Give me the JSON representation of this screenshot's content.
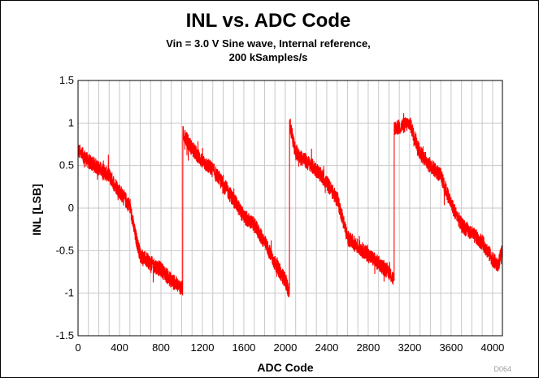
{
  "chart_data": {
    "type": "line",
    "title": "INL vs. ADC Code",
    "subtitle_lines": [
      "Vin = 3.0 V Sine wave, Internal reference,",
      "200 kSamples/s"
    ],
    "xlabel": "ADC Code",
    "ylabel": "INL [LSB]",
    "xlim": [
      0,
      4095
    ],
    "ylim": [
      -1.5,
      1.5
    ],
    "x_ticks": [
      0,
      400,
      800,
      1200,
      1600,
      2000,
      2400,
      2800,
      3200,
      3600,
      4000
    ],
    "x_tick_labels": [
      "0",
      "400",
      "800",
      "1200",
      "1600",
      "2000",
      "2400",
      "2800",
      "3200",
      "3600",
      "4000"
    ],
    "y_ticks": [
      1.5,
      1,
      0.5,
      0,
      -0.5,
      -1,
      -1.5
    ],
    "y_tick_labels": [
      "1.5",
      "1",
      "0.5",
      "0",
      "-0.5",
      "-1",
      "-1.5"
    ],
    "grid": true,
    "grid_x_step": 100,
    "grid_y_step": 0.5,
    "series": [
      {
        "color": "#ff0000",
        "points": [
          [
            0,
            0.68
          ],
          [
            100,
            0.55
          ],
          [
            200,
            0.47
          ],
          [
            300,
            0.38
          ],
          [
            400,
            0.2
          ],
          [
            500,
            0.02
          ],
          [
            550,
            -0.3
          ],
          [
            600,
            -0.55
          ],
          [
            700,
            -0.65
          ],
          [
            800,
            -0.72
          ],
          [
            900,
            -0.85
          ],
          [
            1010,
            -0.95
          ],
          [
            1011,
            0.88
          ],
          [
            1100,
            0.7
          ],
          [
            1200,
            0.55
          ],
          [
            1300,
            0.45
          ],
          [
            1400,
            0.28
          ],
          [
            1500,
            0.1
          ],
          [
            1600,
            -0.1
          ],
          [
            1700,
            -0.2
          ],
          [
            1800,
            -0.4
          ],
          [
            1900,
            -0.65
          ],
          [
            2000,
            -0.85
          ],
          [
            2040,
            -1.0
          ],
          [
            2041,
            1.0
          ],
          [
            2100,
            0.65
          ],
          [
            2200,
            0.55
          ],
          [
            2300,
            0.45
          ],
          [
            2400,
            0.3
          ],
          [
            2500,
            0.1
          ],
          [
            2550,
            -0.1
          ],
          [
            2600,
            -0.35
          ],
          [
            2700,
            -0.45
          ],
          [
            2800,
            -0.55
          ],
          [
            2900,
            -0.65
          ],
          [
            3000,
            -0.75
          ],
          [
            3050,
            -0.85
          ],
          [
            3051,
            0.95
          ],
          [
            3100,
            0.95
          ],
          [
            3200,
            1.0
          ],
          [
            3300,
            0.65
          ],
          [
            3400,
            0.5
          ],
          [
            3500,
            0.38
          ],
          [
            3600,
            0.05
          ],
          [
            3700,
            -0.2
          ],
          [
            3800,
            -0.3
          ],
          [
            3900,
            -0.4
          ],
          [
            4000,
            -0.6
          ],
          [
            4050,
            -0.68
          ],
          [
            4095,
            -0.5
          ]
        ]
      }
    ],
    "noise_amplitude": 0.09,
    "corner_code": "D064"
  }
}
